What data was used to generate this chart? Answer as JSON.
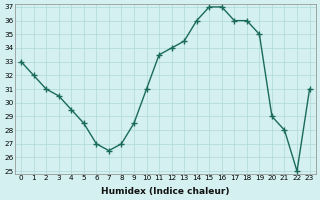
{
  "x": [
    0,
    1,
    2,
    3,
    4,
    5,
    6,
    7,
    8,
    9,
    10,
    11,
    12,
    13,
    14,
    15,
    16,
    17,
    18,
    19,
    20,
    21,
    22,
    23
  ],
  "y": [
    33,
    32,
    31,
    30.5,
    29.5,
    28.5,
    27,
    26.5,
    27,
    28.5,
    31,
    33.5,
    34,
    34.5,
    36,
    37,
    37,
    36,
    36,
    35,
    29,
    28,
    25,
    31
  ],
  "line_color": "#1a6b5a",
  "marker": "+",
  "bg_color": "#d4f0f0",
  "grid_color": "#b0d8d8",
  "xlabel": "Humidex (Indice chaleur)",
  "ylim": [
    25,
    37
  ],
  "xlim": [
    -0.5,
    23.5
  ],
  "yticks": [
    25,
    26,
    27,
    28,
    29,
    30,
    31,
    32,
    33,
    34,
    35,
    36,
    37
  ],
  "xticks": [
    0,
    1,
    2,
    3,
    4,
    5,
    6,
    7,
    8,
    9,
    10,
    11,
    12,
    13,
    14,
    15,
    16,
    17,
    18,
    19,
    20,
    21,
    22,
    23
  ]
}
